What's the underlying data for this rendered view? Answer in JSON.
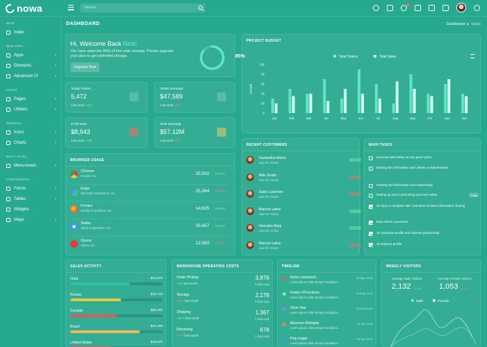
{
  "brand": {
    "name": "nowa"
  },
  "search": {
    "placeholder": "Search..."
  },
  "topbar": {
    "notif_badge": "4"
  },
  "sidebar": {
    "sections": [
      {
        "label": "MAIN",
        "items": [
          {
            "label": "Index",
            "icon": "home-icon"
          }
        ]
      },
      {
        "label": "WEB APPS",
        "items": [
          {
            "label": "Apps",
            "icon": "grid-icon"
          },
          {
            "label": "Elements",
            "icon": "layers-icon"
          },
          {
            "label": "Advanced UI",
            "icon": "box-icon"
          }
        ]
      },
      {
        "label": "PAGES",
        "items": [
          {
            "label": "Pages",
            "icon": "page-icon"
          },
          {
            "label": "Utilities",
            "icon": "tool-icon"
          }
        ]
      },
      {
        "label": "GENERAL",
        "items": [
          {
            "label": "Icons",
            "icon": "star-icon"
          },
          {
            "label": "Charts",
            "icon": "chart-icon"
          }
        ]
      },
      {
        "label": "MULTI LEVEL",
        "items": [
          {
            "label": "Menu-levels",
            "icon": "list-icon"
          }
        ]
      },
      {
        "label": "COMPONENTS",
        "items": [
          {
            "label": "Forms",
            "icon": "form-icon"
          },
          {
            "label": "Tables",
            "icon": "table-icon"
          },
          {
            "label": "Widgets",
            "icon": "widget-icon"
          },
          {
            "label": "Maps",
            "icon": "map-icon"
          }
        ]
      }
    ]
  },
  "page": {
    "title": "DASHBOARD",
    "crumb1": "Dashboard",
    "crumb_sep": "▸",
    "crumb2": "Sales"
  },
  "welcome": {
    "greet": "Hi, Welcome Back ",
    "name": "Nick!",
    "text": "You have used the 85% of free plan storage. Please upgrade your plan to get unlimited storage.",
    "button": "Upgrade Now",
    "percent": "85%",
    "progress": 0.85
  },
  "stats": [
    {
      "label": "Today Orders",
      "value": "5,472",
      "sub": "Last week",
      "change": "+427",
      "dir": "up",
      "tone": "teal"
    },
    {
      "label": "Today Earnings",
      "value": "$47,589",
      "sub": "Last week",
      "change": "-453",
      "dir": "dn",
      "tone": "teal"
    },
    {
      "label": "Profit Gain",
      "value": "$8,943",
      "sub": "Last week",
      "change": "+788",
      "dir": "up",
      "tone": "red"
    },
    {
      "label": "Total Earnings",
      "value": "$57.12M",
      "sub": "Last week",
      "change": "-693",
      "dir": "dn",
      "tone": "yel"
    }
  ],
  "browser": {
    "title": "BROWSER USAGE",
    "rows": [
      {
        "name": "Chrome",
        "sub": "Google, Inc.",
        "value": "35,502",
        "change": "12.75%",
        "dir": "up",
        "color": "#e8c547"
      },
      {
        "name": "Edge",
        "sub": "Microsoft Corporation, Inc.",
        "value": "25,364",
        "change": "24.37%",
        "dir": "dn",
        "color": "#2f8fd8"
      },
      {
        "name": "Firefox",
        "sub": "Mozilla Foundation, Inc.",
        "value": "14,635",
        "change": "15.63%",
        "dir": "up",
        "color": "#f08a24"
      },
      {
        "name": "Safari",
        "sub": "Apple Corporation, Inc.",
        "value": "35,657",
        "change": "12.54%",
        "dir": "up",
        "color": "#3b9be6"
      },
      {
        "name": "Opera",
        "sub": "Opera, Inc.",
        "value": "12,563",
        "change": "15.12%",
        "dir": "dn",
        "color": "#e23d3d"
      }
    ]
  },
  "budget": {
    "title": "PROJECT BUDGET",
    "legend1": "Total Orders",
    "legend2": "Total Sales"
  },
  "chart_data": {
    "type": "bar",
    "categories": [
      "Jan",
      "Feb",
      "Mar",
      "Apr",
      "May",
      "Jun",
      "Jul",
      "Aug",
      "Sep",
      "Oct",
      "Nov",
      "Dec"
    ],
    "series": [
      {
        "name": "Total Orders",
        "values": [
          30,
          50,
          40,
          70,
          30,
          90,
          60,
          20,
          80,
          40,
          60,
          40
        ]
      },
      {
        "name": "Total Sales",
        "values": [
          20,
          35,
          40,
          25,
          50,
          40,
          30,
          65,
          50,
          35,
          70,
          35
        ]
      }
    ],
    "ylabel": "Growth",
    "ylim": [
      0,
      100
    ],
    "yticks": [
      "100",
      "80",
      "60",
      "40",
      "20",
      "0"
    ]
  },
  "customers": {
    "title": "RECENT CUSTOMERS",
    "rows": [
      {
        "name": "Samantha Melon",
        "id": "User ID: #1234",
        "badge": "paid"
      },
      {
        "name": "Allie Grater",
        "id": "User ID: #1234",
        "badge": "pending"
      },
      {
        "name": "Gabe Lackmen",
        "id": "User ID: #1234",
        "badge": "pending"
      },
      {
        "name": "Manuel Labor",
        "id": "User ID: #1234",
        "badge": "paid"
      },
      {
        "name": "Hercules Bing",
        "id": "User ID: #1754",
        "badge": "paid"
      },
      {
        "name": "Manuel Labor",
        "id": "User ID: #1234",
        "badge": "pending"
      }
    ]
  },
  "tasks": {
    "title": "MAIN TASKS",
    "rows": [
      {
        "text": "accurate information at any given point.",
        "done": false,
        "tag": ""
      },
      {
        "text": "sharing the information with clients or stakeholders.",
        "done": false,
        "tag": ""
      },
      {
        "text": "Hearing the information and responding",
        "done": false,
        "tag": ""
      },
      {
        "text": "Setting up and customizing your own sales.",
        "done": false,
        "tag": "1 Day"
      },
      {
        "text": "To have a complete 360° overview of sales information, having",
        "done": true,
        "tag": ""
      },
      {
        "text": "New Admin Launched.",
        "done": true,
        "tag": ""
      },
      {
        "text": "To maximize profits and improve productivity.",
        "done": true,
        "tag": ""
      },
      {
        "text": "To improve profits.",
        "done": true,
        "tag": ""
      }
    ]
  },
  "sales": {
    "title": "SALES ACTIVITY",
    "rows": [
      {
        "country": "India",
        "value": "$31,876",
        "dir": "up",
        "pct": 0.65,
        "color": "#29c4a6"
      },
      {
        "country": "Russia",
        "value": "$22,710",
        "dir": "dn",
        "pct": 0.55,
        "color": "#e8c547"
      },
      {
        "country": "Canada",
        "value": "$56,291",
        "dir": "dn",
        "pct": 0.5,
        "color": "#e25a5a"
      },
      {
        "country": "Brazil",
        "value": "$34,209",
        "dir": "up",
        "pct": 0.75,
        "color": "#f3b65a"
      },
      {
        "country": "United States",
        "value": "$45,870",
        "dir": "dn",
        "pct": 0.45,
        "color": "#e25a5a"
      }
    ]
  },
  "warehouse": {
    "title": "WAREHOUSE OPERATING COSTS",
    "rows": [
      {
        "name": "Order Picking",
        "value": "3,876",
        "sub": "last month",
        "change": "+3%",
        "dir": "up",
        "days": "5 days ago"
      },
      {
        "name": "Storage",
        "value": "2,178",
        "sub": "last month",
        "change": "-16%",
        "dir": "dn",
        "days": "2 days ago"
      },
      {
        "name": "Shipping",
        "value": "1,367",
        "sub": "last month",
        "change": "+45%",
        "dir": "up",
        "days": "1 days ago"
      },
      {
        "name": "Receiving",
        "value": "678",
        "sub": "last month",
        "change": "-67%",
        "dir": "dn",
        "days": "1 days ago"
      }
    ]
  },
  "timeline": {
    "title": "TIMELINE",
    "rows": [
      {
        "name": "Anita Letterback",
        "sub": "Lorem ipsum dolor tempor incididunt...",
        "date": "23 Sep, 2021",
        "color": "#e25a5a"
      },
      {
        "name": "Paddy O'Furniture",
        "sub": "Lorem ipsum dolor tempor incididunt...",
        "date": "16 Aug, 2021",
        "color": "#7af0a0"
      },
      {
        "name": "Olive Yew",
        "sub": "Lorem ipsum dolor tempor incididunt...",
        "date": "23 Feb, 2021",
        "color": "#9b7af0"
      },
      {
        "name": "Maureen Biologist",
        "sub": "Lorem ipsum dolor tempor incididunt...",
        "date": "15 Jan, 2021",
        "color": "#f08a24"
      },
      {
        "name": "Peg Legge",
        "sub": "Lorem ipsum dolor tempor incididunt...",
        "date": "05 Jan, 2021",
        "color": "#3b9be6"
      }
    ]
  },
  "visitors": {
    "title": "WEEKLY VISITORS",
    "male_label": "Average Male Visitors",
    "male_value": "2,132",
    "male_change": "↑ 1.2%",
    "female_label": "Average Female Visitors",
    "female_value": "1,053",
    "female_change": "↓ 0.2%",
    "legend_male": "Male",
    "legend_female": "Female"
  }
}
